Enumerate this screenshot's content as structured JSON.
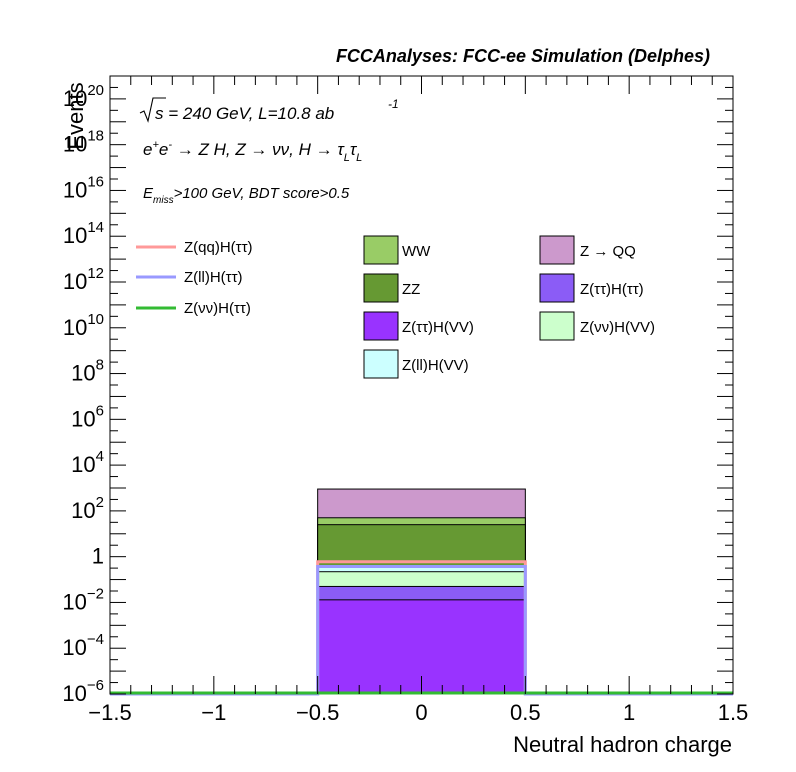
{
  "chart_data": {
    "type": "bar",
    "title": "FCCAnalyses: FCC-ee Simulation (Delphes)",
    "xlabel": "Neutral hadron charge",
    "ylabel": "Events",
    "xlim": [
      -1.5,
      1.5
    ],
    "ylim": [
      1e-06,
      1e+21
    ],
    "yscale": "log",
    "x_ticks": [
      "−1.5",
      "−1",
      "−0.5",
      "0",
      "0.5",
      "1",
      "1.5"
    ],
    "x_tick_values": [
      -1.5,
      -1,
      -0.5,
      0,
      0.5,
      1,
      1.5
    ],
    "y_ticks": [
      {
        "value": 1e-06,
        "base": "10",
        "exp": "−6"
      },
      {
        "value": 0.0001,
        "base": "10",
        "exp": "−4"
      },
      {
        "value": 0.01,
        "base": "10",
        "exp": "−2"
      },
      {
        "value": 1,
        "base": "1",
        "exp": ""
      },
      {
        "value": 100.0,
        "base": "10",
        "exp": "2"
      },
      {
        "value": 10000.0,
        "base": "10",
        "exp": "4"
      },
      {
        "value": 1000000.0,
        "base": "10",
        "exp": "6"
      },
      {
        "value": 100000000.0,
        "base": "10",
        "exp": "8"
      },
      {
        "value": 10000000000.0,
        "base": "10",
        "exp": "10"
      },
      {
        "value": 1000000000000.0,
        "base": "10",
        "exp": "12"
      },
      {
        "value": 100000000000000.0,
        "base": "10",
        "exp": "14"
      },
      {
        "value": 1e+16,
        "base": "10",
        "exp": "16"
      },
      {
        "value": 1e+18,
        "base": "10",
        "exp": "18"
      },
      {
        "value": 1e+20,
        "base": "10",
        "exp": "20"
      }
    ],
    "annotations": [
      "√s = 240 GeV, L=10.8 ab⁻¹",
      "e⁺e⁻ → Z H, Z → νν, H → τLτL",
      "Emiss>100 GeV, BDT score>0.5"
    ],
    "bin": [
      -0.5,
      0.5
    ],
    "stack": [
      {
        "name": "Z(ττ)H(VV)",
        "value": 0.013,
        "color": "#9933ff"
      },
      {
        "name": "Z(ττ)H(ττ)",
        "value": 0.05,
        "color": "#8b5cf6"
      },
      {
        "name": "Z(νν)H(VV)",
        "value": 0.22,
        "color": "#ccffcc"
      },
      {
        "name": "Z(ll)H(VV)",
        "value": 0.36,
        "color": "#ccffff"
      },
      {
        "name": "ZZ",
        "value": 25,
        "color": "#669933"
      },
      {
        "name": "WW",
        "value": 50,
        "color": "#99cc66"
      },
      {
        "name": "Z → QQ",
        "value": 900,
        "color": "#cc99cc"
      }
    ],
    "signal_lines": [
      {
        "name": "Z(qq)H(ττ)",
        "value": 0.6,
        "color": "#ff9999"
      },
      {
        "name": "Z(ll)H(ττ)",
        "value": 0.37,
        "color": "#9999ff"
      },
      {
        "name": "Z(νν)H(ττ)",
        "value": 1e-06,
        "color": "#33bb33"
      }
    ],
    "legend": {
      "lines": [
        "Z(qq)H(ττ)",
        "Z(ll)H(ττ)",
        "Z(νν)H(ττ)"
      ],
      "boxes": [
        "WW",
        "Z → QQ",
        "ZZ",
        "Z(ττ)H(ττ)",
        "Z(ττ)H(VV)",
        "Z(νν)H(VV)",
        "Z(ll)H(VV)"
      ]
    }
  }
}
